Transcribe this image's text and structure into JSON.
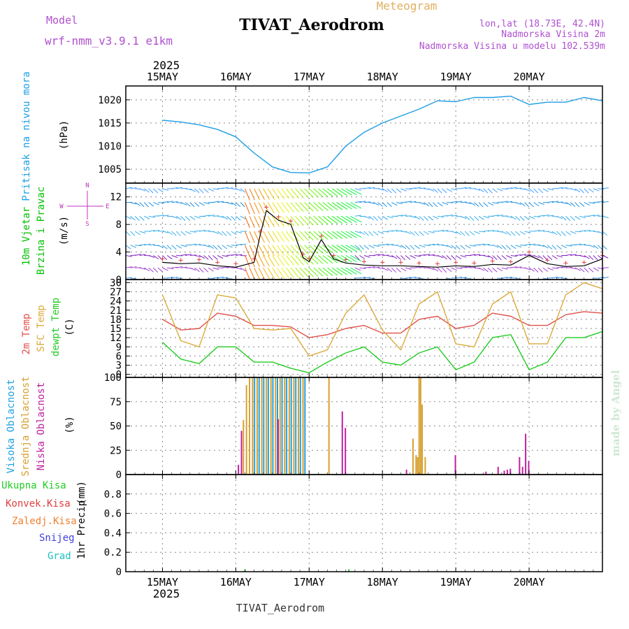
{
  "header": {
    "model_label": "Model",
    "model_name": "wrf-nmm_v3.9.1 e1km",
    "title": "TIVAT_Aerodrom",
    "meteogram": "Meteogram",
    "lonlat": "lon,lat (18.73E, 42.4N)",
    "elevation": "Nadmorska Visina 2m",
    "model_elevation": "Nadmorska Visina u modelu 102.539m",
    "credit": "made by Angel",
    "footer": "TIVAT_Aerodrom"
  },
  "time_axis": {
    "year": "2025",
    "days": [
      "15MAY",
      "16MAY",
      "17MAY",
      "18MAY",
      "19MAY",
      "20MAY"
    ]
  },
  "wind_rose": {
    "n": "N",
    "s": "S",
    "e": "E",
    "w": "W"
  },
  "colors": {
    "pressure": "#1e9ee6",
    "wind_label": "#00c000",
    "wind_axis": "#c030c0",
    "temp2m": "#e0504a",
    "sfc": "#dcaa3c",
    "dewpt": "#22cc22",
    "cloud_high": "#20a0e0",
    "cloud_mid": "#d8a030",
    "cloud_low": "#c020a0",
    "precip_total": "#22cc22",
    "precip_conv": "#e04040",
    "precip_frozen": "#f08030",
    "precip_snow": "#4040e0",
    "precip_hail": "#20c0c0"
  },
  "chart_data": [
    {
      "type": "line",
      "ylabel_1": "Pritisak na nivou mora",
      "unit": "(hPa)",
      "yticks": [
        1005,
        1010,
        1015,
        1020
      ],
      "ylim": [
        1002,
        1023
      ],
      "x_hours": [
        0,
        6,
        12,
        18,
        24,
        30,
        36,
        42,
        48,
        54,
        60,
        66,
        72,
        78,
        84,
        90,
        96,
        102,
        108,
        114,
        120,
        126,
        132,
        138,
        144
      ],
      "values": [
        1015.6,
        1015.2,
        1014.6,
        1013.6,
        1012.0,
        1008.5,
        1005.5,
        1004.3,
        1004.2,
        1005.5,
        1010.0,
        1013.0,
        1015.0,
        1016.5,
        1018.0,
        1019.8,
        1019.6,
        1020.5,
        1020.5,
        1020.8,
        1019.0,
        1019.5,
        1019.5,
        1020.5,
        1019.8
      ]
    },
    {
      "type": "line",
      "ylabel_1": "10m Vjetar",
      "ylabel_2": "Brzina i Pravac",
      "unit": "(m/s)",
      "yticks": [
        0,
        4,
        8,
        12
      ],
      "ylim": [
        0,
        14
      ],
      "x_hours": [
        0,
        6,
        12,
        18,
        24,
        30,
        32,
        34,
        38,
        42,
        46,
        48,
        52,
        56,
        60,
        66,
        72,
        78,
        84,
        90,
        96,
        102,
        108,
        114,
        120,
        126,
        132,
        138,
        144
      ],
      "values": [
        2.5,
        2.3,
        2.4,
        2.0,
        1.8,
        2.5,
        6.5,
        10.0,
        8.6,
        8.0,
        3.2,
        2.6,
        5.8,
        3.0,
        2.4,
        2.1,
        2.0,
        2.0,
        1.9,
        1.8,
        2.0,
        1.9,
        2.2,
        2.1,
        3.5,
        2.3,
        1.9,
        2.0,
        3.0
      ]
    },
    {
      "type": "line",
      "ylabel_1": "2m Temp",
      "ylabel_2": "SFC Temp",
      "ylabel_3": "dewpt Temp",
      "unit": "(C)",
      "yticks": [
        0,
        3,
        6,
        9,
        12,
        15,
        18,
        21,
        24,
        27,
        30
      ],
      "ylim": [
        -1,
        31
      ],
      "x_hours": [
        0,
        6,
        12,
        18,
        24,
        30,
        36,
        42,
        48,
        54,
        60,
        66,
        72,
        78,
        84,
        90,
        96,
        102,
        108,
        114,
        120,
        126,
        132,
        138,
        144
      ],
      "series": [
        {
          "name": "2m Temp",
          "values": [
            18,
            14.5,
            15,
            20,
            19,
            16,
            16,
            15.5,
            12,
            13,
            15,
            16,
            13.5,
            13.5,
            18,
            19,
            15,
            16,
            20,
            19,
            16,
            16,
            19.5,
            20.5,
            20
          ]
        },
        {
          "name": "SFC Temp",
          "values": [
            26,
            11,
            9,
            26,
            25,
            15,
            14.5,
            15,
            6,
            8,
            20,
            26,
            14.5,
            8,
            23,
            27,
            10,
            9,
            23,
            27,
            10,
            10,
            26,
            30,
            28
          ]
        },
        {
          "name": "dewpt Temp",
          "values": [
            10.5,
            5,
            3.5,
            9,
            9,
            4,
            4,
            2,
            0.5,
            4,
            7,
            9,
            4,
            3,
            7,
            9,
            1.5,
            4,
            12,
            13,
            1.5,
            4,
            12,
            12,
            14
          ]
        }
      ]
    },
    {
      "type": "bar",
      "ylabel_1": "Visoka Oblacnost",
      "ylabel_2": "Srednja Oblacnost",
      "ylabel_3": "Niska Oblacnost",
      "unit": "(%)",
      "yticks": [
        0,
        25,
        50,
        75,
        100
      ],
      "ylim": [
        0,
        100
      ],
      "series": [
        {
          "name": "Visoka Oblacnost",
          "x_hours": [
            30,
            31.5,
            33,
            34.5,
            36,
            37.5,
            39,
            40.5,
            42,
            43.5,
            45,
            46.5
          ],
          "values": [
            100,
            100,
            100,
            100,
            100,
            100,
            100,
            100,
            100,
            100,
            100,
            100
          ]
        },
        {
          "name": "Srednja Oblacnost",
          "x_hours": [
            26.5,
            27.5,
            28.5,
            29.5,
            31,
            32.5,
            34,
            35.5,
            37,
            38.5,
            40,
            41.5,
            43,
            44.5,
            46,
            54.5,
            82,
            83,
            83.5,
            84,
            84.5,
            85,
            86
          ],
          "values": [
            56,
            92,
            100,
            100,
            100,
            100,
            100,
            100,
            100,
            100,
            100,
            100,
            100,
            100,
            100,
            100,
            37,
            20,
            18,
            100,
            100,
            72,
            18
          ]
        },
        {
          "name": "Niska Oblacnost",
          "x_hours": [
            25,
            26,
            38,
            59,
            60,
            80,
            96,
            106,
            110,
            112,
            113,
            114,
            117,
            118,
            119,
            120
          ],
          "values": [
            10,
            45,
            57,
            65,
            48,
            5,
            20,
            3,
            8,
            4,
            5,
            6,
            18,
            8,
            42,
            14
          ]
        }
      ]
    },
    {
      "type": "line",
      "ylabel_1": "1hr Precip",
      "unit": "(mm)",
      "legend": [
        "Ukupna Kisa",
        "Konvek.Kisa",
        "Zaledj.Kisa",
        "Snijeg",
        "Grad"
      ],
      "yticks": [
        0,
        0.2,
        0.4,
        0.6,
        0.8
      ],
      "ylim": [
        0,
        1
      ],
      "x_hours": [
        0,
        26,
        27,
        28,
        60,
        61,
        144
      ],
      "values": [
        0,
        0,
        0.01,
        0,
        0,
        0.01,
        0
      ]
    }
  ]
}
